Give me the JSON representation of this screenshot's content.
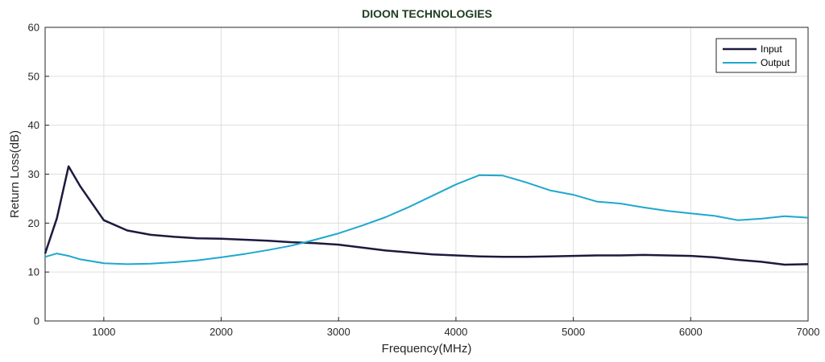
{
  "chart_data": {
    "type": "line",
    "title": "DIOON TECHNOLOGIES",
    "xlabel": "Frequency(MHz)",
    "ylabel": "Return Loss(dB)",
    "xlim": [
      500,
      7000
    ],
    "ylim": [
      0,
      60
    ],
    "xticks": [
      1000,
      2000,
      3000,
      4000,
      5000,
      6000,
      7000
    ],
    "yticks": [
      0,
      10,
      20,
      30,
      40,
      50,
      60
    ],
    "grid": true,
    "legend_position": "top-right",
    "series": [
      {
        "name": "Input",
        "color": "#1c1a3f",
        "x": [
          500,
          600,
          700,
          800,
          1000,
          1200,
          1400,
          1600,
          1800,
          2000,
          2200,
          2400,
          2600,
          2800,
          3000,
          3200,
          3400,
          3600,
          3800,
          4000,
          4200,
          4400,
          4600,
          4800,
          5000,
          5200,
          5400,
          5600,
          5800,
          6000,
          6200,
          6400,
          6600,
          6800,
          7000
        ],
        "values": [
          13.8,
          21.0,
          31.6,
          27.5,
          20.6,
          18.5,
          17.6,
          17.2,
          16.9,
          16.8,
          16.6,
          16.4,
          16.1,
          15.9,
          15.6,
          15.0,
          14.4,
          14.0,
          13.6,
          13.4,
          13.2,
          13.1,
          13.1,
          13.2,
          13.3,
          13.4,
          13.4,
          13.5,
          13.4,
          13.3,
          13.0,
          12.5,
          12.1,
          11.5,
          11.6
        ]
      },
      {
        "name": "Output",
        "color": "#1fa7cf",
        "x": [
          500,
          600,
          700,
          800,
          1000,
          1200,
          1400,
          1600,
          1800,
          2000,
          2200,
          2400,
          2600,
          2800,
          3000,
          3200,
          3400,
          3600,
          3800,
          4000,
          4200,
          4400,
          4600,
          4800,
          5000,
          5200,
          5400,
          5600,
          5800,
          6000,
          6200,
          6400,
          6600,
          6800,
          7000
        ],
        "values": [
          13.1,
          13.8,
          13.3,
          12.6,
          11.8,
          11.6,
          11.7,
          12.0,
          12.4,
          13.0,
          13.7,
          14.5,
          15.4,
          16.6,
          17.9,
          19.5,
          21.2,
          23.3,
          25.6,
          27.9,
          29.8,
          29.7,
          28.3,
          26.7,
          25.8,
          24.4,
          24.0,
          23.2,
          22.5,
          22.0,
          21.5,
          20.6,
          20.9,
          21.4,
          21.1
        ]
      }
    ]
  }
}
